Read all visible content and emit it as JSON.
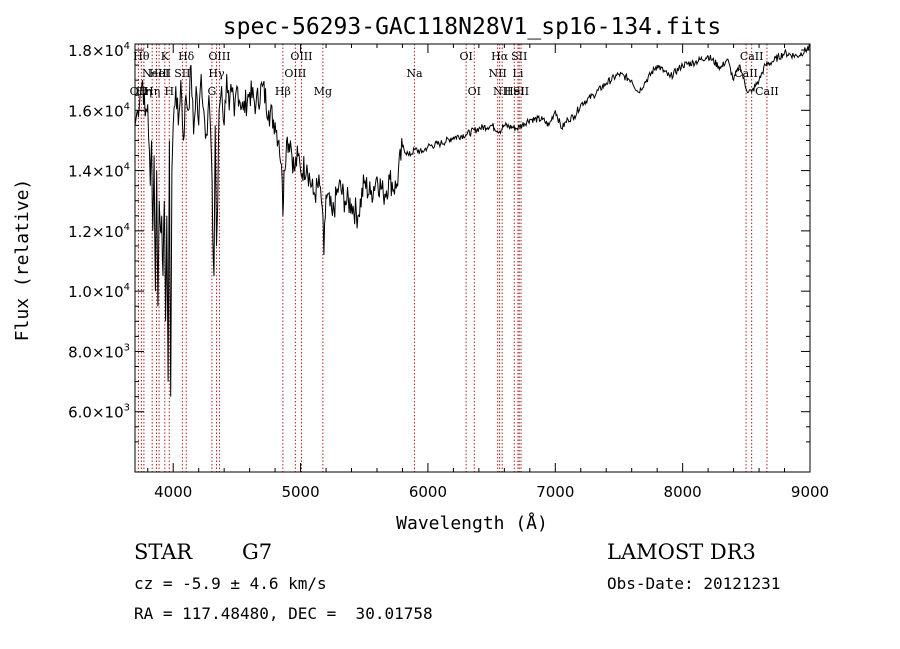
{
  "chart_data": {
    "type": "line",
    "title": "spec-56293-GAC118N28V1_sp16-134.fits",
    "xlabel": "Wavelength (Å)",
    "ylabel": "Flux (relative)",
    "xlim": [
      3700,
      9000
    ],
    "ylim": [
      4000,
      18200
    ],
    "xticks": [
      4000,
      5000,
      6000,
      7000,
      8000,
      9000
    ],
    "yticks": [
      {
        "value": 6000,
        "mant": "6.0",
        "exp": "3"
      },
      {
        "value": 8000,
        "mant": "8.0",
        "exp": "3"
      },
      {
        "value": 10000,
        "mant": "1.0",
        "exp": "4"
      },
      {
        "value": 12000,
        "mant": "1.2",
        "exp": "4"
      },
      {
        "value": 14000,
        "mant": "1.4",
        "exp": "4"
      },
      {
        "value": 16000,
        "mant": "1.6",
        "exp": "4"
      },
      {
        "value": 18000,
        "mant": "1.8",
        "exp": "4"
      }
    ],
    "grid": false,
    "legend": "none",
    "line_color": "#000000",
    "marker_color": "#b22222",
    "series": [
      {
        "x": [
          3700,
          3720,
          3740,
          3760,
          3780,
          3800,
          3820,
          3830,
          3840,
          3850,
          3860,
          3870,
          3880,
          3890,
          3900,
          3910,
          3920,
          3930,
          3940,
          3950,
          3960,
          3970,
          3980,
          3990,
          4000,
          4020,
          4040,
          4060,
          4080,
          4100,
          4120,
          4140,
          4160,
          4180,
          4200,
          4220,
          4240,
          4260,
          4280,
          4300,
          4310,
          4320,
          4330,
          4340,
          4350,
          4360,
          4380,
          4400,
          4420,
          4440,
          4460,
          4480,
          4500,
          4550,
          4600,
          4650,
          4700,
          4750,
          4800,
          4830,
          4850,
          4861,
          4870,
          4890,
          4920,
          4950,
          4980,
          5000,
          5050,
          5100,
          5150,
          5170,
          5183,
          5200,
          5250,
          5300,
          5350,
          5400,
          5450,
          5500,
          5550,
          5600,
          5650,
          5700,
          5750,
          5800,
          5850,
          5900,
          5950,
          6000,
          6100,
          6200,
          6300,
          6400,
          6500,
          6563,
          6600,
          6700,
          6800,
          6900,
          6950,
          7000,
          7050,
          7100,
          7150,
          7200,
          7300,
          7400,
          7500,
          7600,
          7650,
          7700,
          7800,
          7900,
          8000,
          8100,
          8200,
          8300,
          8350,
          8400,
          8450,
          8500,
          8542,
          8600,
          8650,
          8700,
          8800,
          8900,
          9000
        ],
        "y": [
          15500,
          16000,
          16500,
          17000,
          15800,
          16200,
          13500,
          15000,
          12000,
          14500,
          10000,
          14000,
          9500,
          13000,
          12000,
          12500,
          10500,
          13000,
          9000,
          12500,
          7000,
          15000,
          6500,
          14000,
          15500,
          16800,
          15500,
          17000,
          15000,
          16500,
          16000,
          17500,
          15200,
          16800,
          15500,
          17200,
          16000,
          15200,
          16500,
          14500,
          12000,
          10500,
          15500,
          11500,
          13000,
          16000,
          16800,
          15500,
          17200,
          16000,
          16600,
          15800,
          16800,
          16000,
          16600,
          16200,
          16800,
          16000,
          15600,
          15000,
          14200,
          12500,
          14000,
          15000,
          15000,
          14000,
          14500,
          14000,
          14200,
          13200,
          13500,
          12800,
          11200,
          13200,
          12500,
          13500,
          13000,
          12900,
          12500,
          13600,
          13200,
          13800,
          13200,
          13700,
          13400,
          14800,
          14500,
          14700,
          14600,
          14800,
          14900,
          15100,
          15200,
          15400,
          15500,
          15300,
          15500,
          15400,
          15700,
          15700,
          15500,
          16000,
          15400,
          15700,
          15800,
          16200,
          16500,
          16900,
          17200,
          17000,
          16600,
          16900,
          17500,
          17100,
          17500,
          17600,
          17800,
          17400,
          17700,
          17000,
          17500,
          16700,
          16600,
          17000,
          17500,
          17600,
          17900,
          17800,
          18100
        ]
      }
    ],
    "lines": [
      {
        "x": 3727,
        "label": "OII",
        "row": 2
      },
      {
        "x": 3750,
        "label": "Hθ",
        "row": 0
      },
      {
        "x": 3770,
        "label": "Hη",
        "row": 2
      },
      {
        "x": 3835,
        "label": "Hη",
        "row": 2
      },
      {
        "x": 3869,
        "label": "NeIII",
        "row": 1
      },
      {
        "x": 3889,
        "label": "HeI",
        "row": 1
      },
      {
        "x": 3934,
        "label": "K",
        "row": 0
      },
      {
        "x": 3969,
        "label": "H",
        "row": 2
      },
      {
        "x": 4072,
        "label": "SII",
        "row": 1
      },
      {
        "x": 4102,
        "label": "Hδ",
        "row": 0
      },
      {
        "x": 4304,
        "label": "G",
        "row": 2
      },
      {
        "x": 4340,
        "label": "Hγ",
        "row": 1
      },
      {
        "x": 4363,
        "label": "OIII",
        "row": 0
      },
      {
        "x": 4861,
        "label": "Hβ",
        "row": 2
      },
      {
        "x": 4959,
        "label": "OIII",
        "row": 1
      },
      {
        "x": 5007,
        "label": "OIII",
        "row": 0
      },
      {
        "x": 5175,
        "label": "Mg",
        "row": 2
      },
      {
        "x": 5894,
        "label": "Na",
        "row": 1
      },
      {
        "x": 6300,
        "label": "OI",
        "row": 0
      },
      {
        "x": 6364,
        "label": "OI",
        "row": 2
      },
      {
        "x": 6548,
        "label": "NII",
        "row": 1
      },
      {
        "x": 6563,
        "label": "Hα",
        "row": 0
      },
      {
        "x": 6583,
        "label": "NII",
        "row": 2
      },
      {
        "x": 6678,
        "label": "HeI",
        "row": 2
      },
      {
        "x": 6707,
        "label": "Li",
        "row": 1
      },
      {
        "x": 6717,
        "label": "SII",
        "row": 0
      },
      {
        "x": 6731,
        "label": "SII",
        "row": 2
      },
      {
        "x": 8498,
        "label": "CaII",
        "row": 1
      },
      {
        "x": 8542,
        "label": "CaII",
        "row": 0
      },
      {
        "x": 8662,
        "label": "CaII",
        "row": 2
      }
    ]
  },
  "info": {
    "class": "STAR",
    "subclass": "G7",
    "survey": "LAMOST DR3",
    "cz": "cz = -5.9 ± 4.6 km/s",
    "obs_date": "Obs-Date: 20121231",
    "coords": "RA = 117.48480, DEC =  30.01758"
  }
}
